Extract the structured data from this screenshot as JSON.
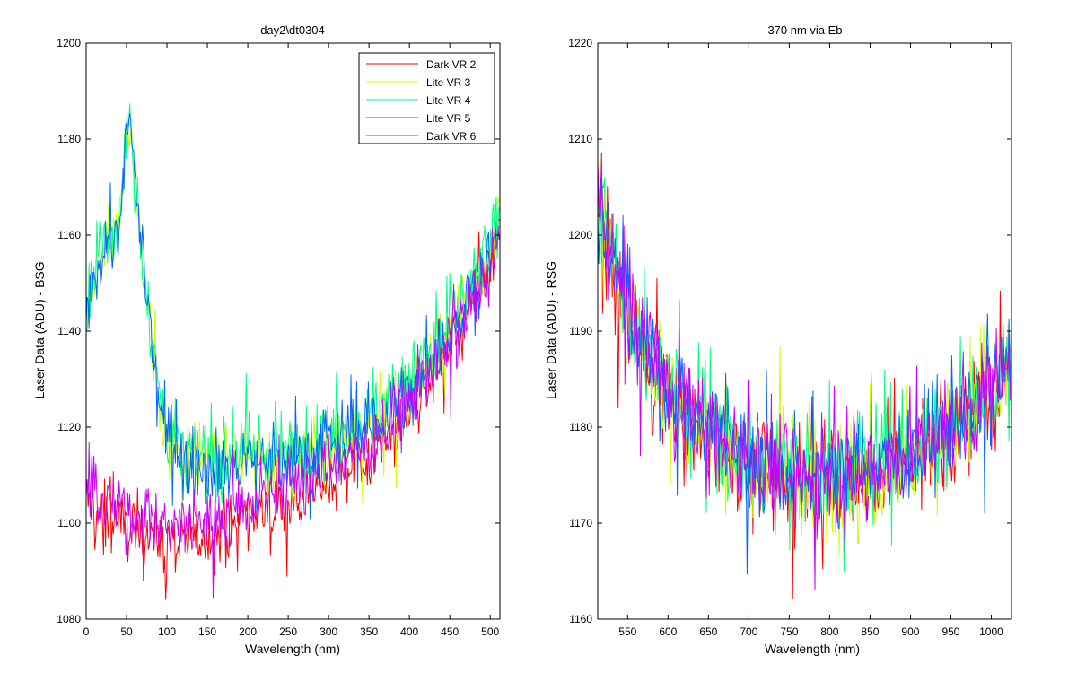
{
  "chart_data": [
    {
      "type": "line",
      "title": "day2\\dt0304",
      "xlabel": "Wavelength (nm)",
      "ylabel": "Laser Data (ADU) - BSG",
      "xlim": [
        0,
        512
      ],
      "ylim": [
        1080,
        1200
      ],
      "xticks": [
        "0",
        "50",
        "100",
        "150",
        "200",
        "250",
        "300",
        "350",
        "400",
        "450",
        "500"
      ],
      "yticks": [
        "1080",
        "1100",
        "1120",
        "1140",
        "1160",
        "1180",
        "1200"
      ],
      "legend_position": "top-right",
      "grid": false,
      "series": [
        {
          "name": "Dark VR 2",
          "color": "#ff0000",
          "x": [
            0,
            20,
            40,
            60,
            80,
            100,
            120,
            140,
            160,
            180,
            200,
            240,
            280,
            320,
            360,
            400,
            440,
            470,
            500,
            512
          ],
          "y": [
            1105,
            1101,
            1100,
            1099,
            1098,
            1097,
            1096,
            1097,
            1098,
            1099,
            1101,
            1104,
            1107,
            1111,
            1116,
            1124,
            1134,
            1142,
            1152,
            1158
          ]
        },
        {
          "name": "Lite VR 3",
          "color": "#ccff00",
          "x": [
            0,
            10,
            20,
            30,
            40,
            50,
            55,
            60,
            70,
            80,
            90,
            100,
            120,
            150,
            200,
            250,
            300,
            350,
            400,
            450,
            500,
            512
          ],
          "y": [
            1142,
            1150,
            1156,
            1160,
            1160,
            1180,
            1183,
            1170,
            1155,
            1140,
            1126,
            1118,
            1115,
            1114,
            1113,
            1114,
            1117,
            1121,
            1128,
            1140,
            1156,
            1162
          ]
        },
        {
          "name": "Lite VR 4",
          "color": "#00ff80",
          "x": [
            0,
            10,
            20,
            30,
            40,
            50,
            55,
            60,
            70,
            80,
            90,
            100,
            120,
            150,
            200,
            250,
            300,
            350,
            400,
            450,
            500,
            512
          ],
          "y": [
            1144,
            1151,
            1157,
            1161,
            1161,
            1181,
            1184,
            1171,
            1156,
            1141,
            1127,
            1119,
            1115,
            1114,
            1114,
            1115,
            1118,
            1122,
            1129,
            1141,
            1157,
            1163
          ]
        },
        {
          "name": "Lite VR 5",
          "color": "#0066ff",
          "x": [
            0,
            10,
            20,
            30,
            40,
            50,
            55,
            60,
            70,
            80,
            90,
            100,
            120,
            150,
            200,
            250,
            300,
            350,
            400,
            450,
            500,
            512
          ],
          "y": [
            1143,
            1150,
            1156,
            1160,
            1160,
            1180,
            1183,
            1170,
            1155,
            1140,
            1126,
            1117,
            1113,
            1112,
            1112,
            1113,
            1116,
            1120,
            1127,
            1139,
            1156,
            1162
          ]
        },
        {
          "name": "Dark VR 6",
          "color": "#cc00ff",
          "x": [
            0,
            20,
            40,
            60,
            80,
            100,
            120,
            140,
            160,
            180,
            200,
            240,
            280,
            320,
            360,
            400,
            440,
            470,
            500,
            512
          ],
          "y": [
            1107,
            1104,
            1103,
            1102,
            1101,
            1100,
            1099,
            1100,
            1101,
            1102,
            1104,
            1107,
            1110,
            1113,
            1118,
            1125,
            1135,
            1143,
            1153,
            1159
          ]
        }
      ]
    },
    {
      "type": "line",
      "title": "370 nm via Eb",
      "xlabel": "Wavelength (nm)",
      "ylabel": "Laser Data (ADU) - RSG",
      "xlim": [
        513,
        1025
      ],
      "ylim": [
        1160,
        1220
      ],
      "xticks": [
        "550",
        "600",
        "650",
        "700",
        "750",
        "800",
        "850",
        "900",
        "950",
        "1000"
      ],
      "yticks": [
        "1160",
        "1170",
        "1180",
        "1190",
        "1200",
        "1210",
        "1220"
      ],
      "grid": false,
      "series": [
        {
          "name": "Dark VR 2",
          "color": "#ff0000",
          "x": [
            513,
            530,
            560,
            600,
            650,
            700,
            750,
            800,
            850,
            900,
            950,
            1000,
            1025
          ],
          "y": [
            1203,
            1196,
            1189,
            1183,
            1179,
            1176,
            1174,
            1174,
            1175,
            1177,
            1179,
            1183,
            1186
          ]
        },
        {
          "name": "Lite VR 3",
          "color": "#ccff00",
          "x": [
            513,
            530,
            560,
            600,
            650,
            700,
            750,
            800,
            850,
            900,
            950,
            1000,
            1025
          ],
          "y": [
            1204,
            1197,
            1190,
            1184,
            1179,
            1176,
            1175,
            1174,
            1175,
            1177,
            1179,
            1183,
            1186
          ]
        },
        {
          "name": "Lite VR 4",
          "color": "#00ff80",
          "x": [
            513,
            530,
            560,
            600,
            650,
            700,
            750,
            800,
            850,
            900,
            950,
            1000,
            1025
          ],
          "y": [
            1204,
            1197,
            1190,
            1184,
            1180,
            1177,
            1175,
            1175,
            1176,
            1177,
            1180,
            1184,
            1187
          ]
        },
        {
          "name": "Lite VR 5",
          "color": "#0066ff",
          "x": [
            513,
            530,
            560,
            600,
            650,
            700,
            750,
            800,
            850,
            900,
            950,
            1000,
            1025
          ],
          "y": [
            1204,
            1198,
            1190,
            1184,
            1180,
            1177,
            1175,
            1175,
            1176,
            1178,
            1180,
            1184,
            1187
          ]
        },
        {
          "name": "Dark VR 6",
          "color": "#cc00ff",
          "x": [
            513,
            530,
            560,
            600,
            650,
            700,
            750,
            800,
            850,
            900,
            950,
            1000,
            1025
          ],
          "y": [
            1205,
            1197,
            1190,
            1184,
            1180,
            1177,
            1175,
            1175,
            1176,
            1177,
            1180,
            1184,
            1187
          ]
        }
      ]
    }
  ]
}
